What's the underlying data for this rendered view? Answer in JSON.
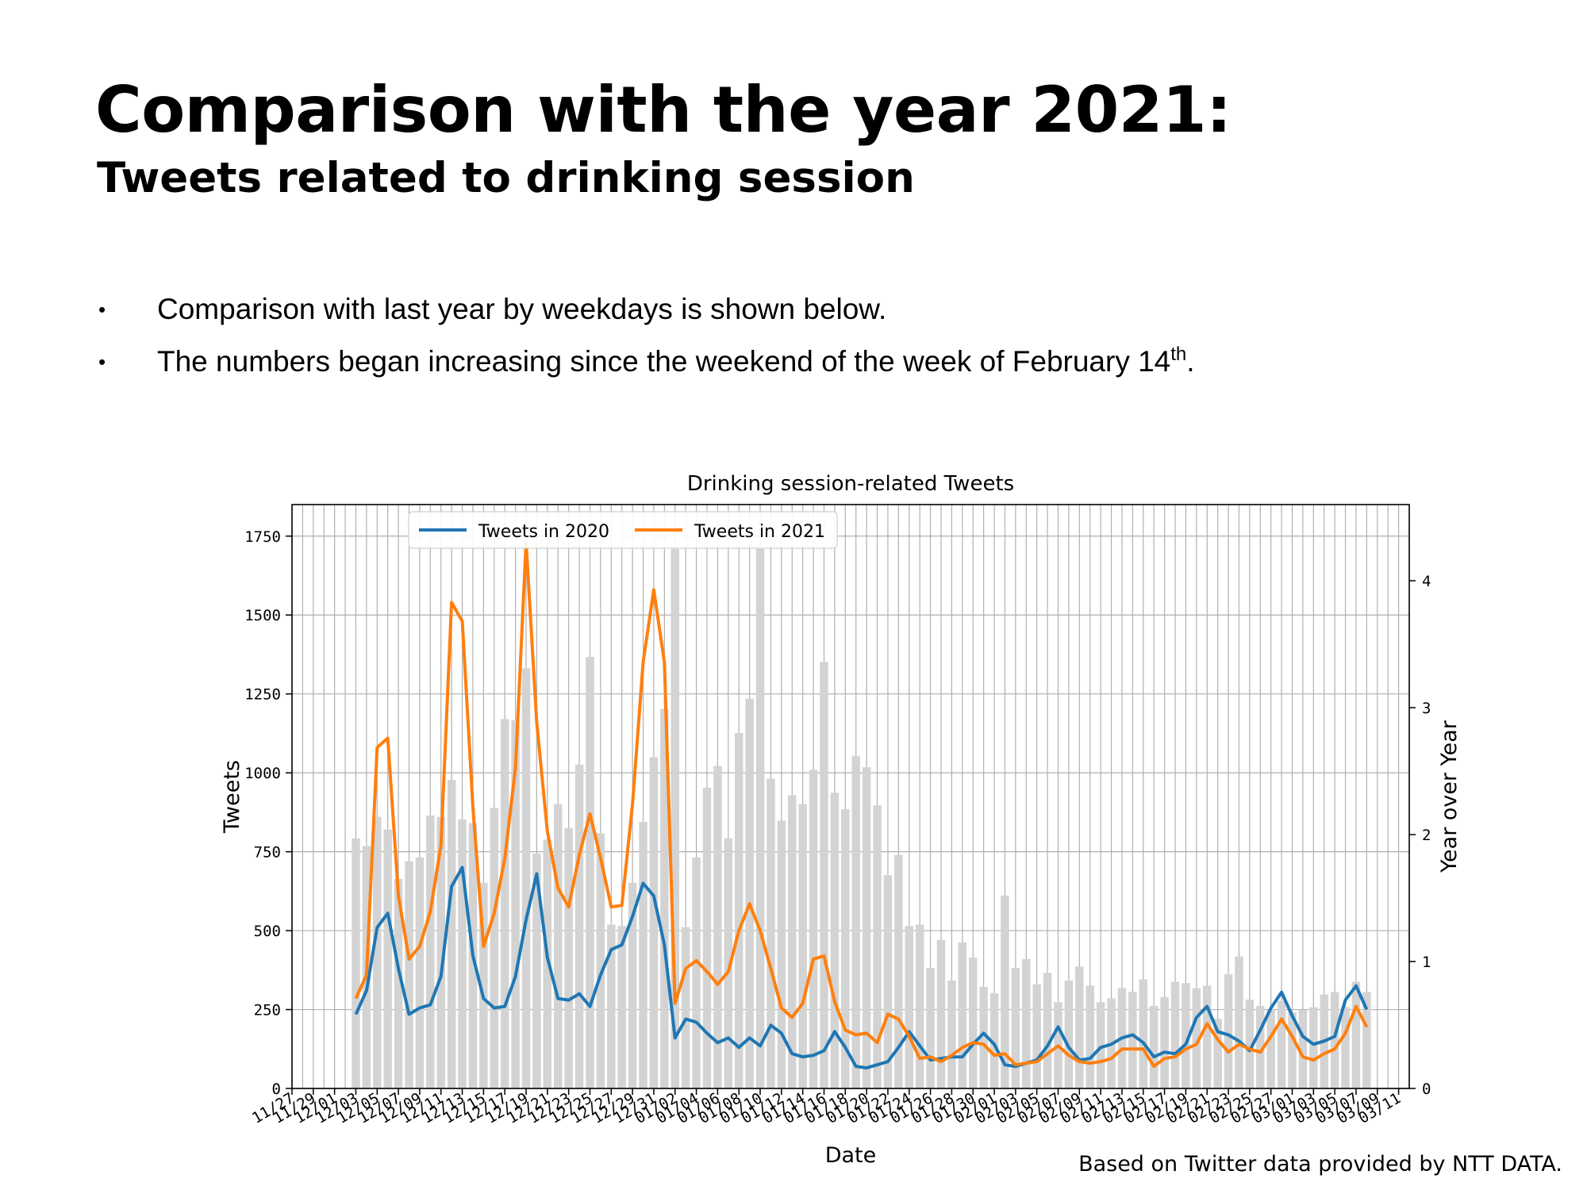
{
  "slide": {
    "title": "Comparison with the year 2021:",
    "subtitle": "Tweets related to drinking session",
    "bullets": [
      {
        "text": "Comparison with last year by weekdays is shown below.",
        "suffix": "",
        "post": ""
      },
      {
        "text": "The numbers began increasing since the weekend of the week of February 14",
        "suffix": "th",
        "post": "."
      }
    ],
    "bullet_glyph": "•",
    "source": "Based on Twitter data provided by NTT DATA."
  },
  "colors": {
    "series_2020": "#1f77b4",
    "series_2021": "#ff7f0e",
    "bars": "#d3d3d3",
    "grid": "#b0b0b0"
  },
  "chart_data": {
    "type": "line",
    "title": "Drinking session-related Tweets",
    "xlabel": "Date",
    "ylabel": "Tweets",
    "y2label": "Year over Year",
    "ylim": [
      0,
      1850
    ],
    "y2lim": [
      0,
      4.6
    ],
    "yticks": [
      0,
      250,
      500,
      750,
      1000,
      1250,
      1500,
      1750
    ],
    "y2ticks": [
      0,
      1,
      2,
      3,
      4
    ],
    "x_start": "2020-11-27",
    "x_end": "2021-03-12",
    "xtick_labels": [
      "11/27",
      "11/29",
      "12/01",
      "12/03",
      "12/05",
      "12/07",
      "12/09",
      "12/11",
      "12/13",
      "12/15",
      "12/17",
      "12/19",
      "12/21",
      "12/23",
      "12/25",
      "12/27",
      "12/29",
      "12/31",
      "01/02",
      "01/04",
      "01/06",
      "01/08",
      "01/10",
      "01/12",
      "01/14",
      "01/16",
      "01/18",
      "01/20",
      "01/22",
      "01/24",
      "01/26",
      "01/28",
      "01/30",
      "02/01",
      "02/03",
      "02/05",
      "02/07",
      "02/09",
      "02/11",
      "02/13",
      "02/15",
      "02/17",
      "02/19",
      "02/21",
      "02/23",
      "02/25",
      "02/27",
      "03/01",
      "03/03",
      "03/05",
      "03/07",
      "03/09",
      "03/11"
    ],
    "grid": true,
    "legend_position": "top-left",
    "dates": [
      "12/03",
      "12/04",
      "12/05",
      "12/06",
      "12/07",
      "12/08",
      "12/09",
      "12/10",
      "12/11",
      "12/12",
      "12/13",
      "12/14",
      "12/15",
      "12/16",
      "12/17",
      "12/18",
      "12/19",
      "12/20",
      "12/21",
      "12/22",
      "12/23",
      "12/24",
      "12/25",
      "12/26",
      "12/27",
      "12/28",
      "12/29",
      "12/30",
      "12/31",
      "01/01",
      "01/02",
      "01/03",
      "01/04",
      "01/05",
      "01/06",
      "01/07",
      "01/08",
      "01/09",
      "01/10",
      "01/11",
      "01/12",
      "01/13",
      "01/14",
      "01/15",
      "01/16",
      "01/17",
      "01/18",
      "01/19",
      "01/20",
      "01/21",
      "01/22",
      "01/23",
      "01/24",
      "01/25",
      "01/26",
      "01/27",
      "01/28",
      "01/29",
      "01/30",
      "01/31",
      "02/01",
      "02/02",
      "02/03",
      "02/04",
      "02/05",
      "02/06",
      "02/07",
      "02/08",
      "02/09",
      "02/10",
      "02/11",
      "02/12",
      "02/13",
      "02/14",
      "02/15",
      "02/16",
      "02/17",
      "02/18",
      "02/19",
      "02/20",
      "02/21",
      "02/22",
      "02/23",
      "02/24",
      "02/25",
      "02/26",
      "02/27",
      "02/28",
      "03/01",
      "03/02",
      "03/03",
      "03/04",
      "03/05",
      "03/06",
      "03/07",
      "03/08"
    ],
    "series": [
      {
        "name": "Tweets in 2020",
        "axis": "left",
        "values": [
          235,
          310,
          510,
          555,
          380,
          235,
          255,
          265,
          355,
          640,
          700,
          420,
          285,
          255,
          260,
          355,
          535,
          680,
          415,
          285,
          280,
          300,
          260,
          360,
          440,
          455,
          545,
          650,
          610,
          455,
          160,
          220,
          210,
          175,
          145,
          160,
          130,
          160,
          135,
          200,
          175,
          110,
          100,
          105,
          120,
          180,
          130,
          70,
          65,
          75,
          85,
          130,
          180,
          135,
          90,
          95,
          100,
          100,
          140,
          175,
          140,
          75,
          70,
          80,
          90,
          135,
          195,
          130,
          90,
          95,
          130,
          140,
          160,
          170,
          145,
          100,
          115,
          110,
          140,
          225,
          260,
          180,
          170,
          150,
          120,
          185,
          255,
          305,
          230,
          165,
          140,
          150,
          165,
          280,
          325,
          250
        ]
      },
      {
        "name": "Tweets in 2021",
        "axis": "left",
        "values": [
          285,
          360,
          1080,
          1110,
          610,
          410,
          450,
          560,
          770,
          1540,
          1480,
          890,
          450,
          555,
          730,
          1015,
          1730,
          1160,
          815,
          635,
          575,
          740,
          870,
          730,
          575,
          580,
          900,
          1350,
          1580,
          1350,
          270,
          380,
          405,
          370,
          330,
          370,
          500,
          585,
          500,
          380,
          255,
          225,
          270,
          410,
          420,
          275,
          185,
          170,
          175,
          145,
          235,
          220,
          165,
          95,
          100,
          85,
          105,
          130,
          145,
          140,
          105,
          110,
          75,
          80,
          85,
          110,
          135,
          105,
          85,
          80,
          85,
          95,
          125,
          125,
          125,
          70,
          95,
          100,
          125,
          140,
          205,
          155,
          115,
          140,
          125,
          115,
          165,
          220,
          165,
          100,
          90,
          110,
          125,
          175,
          260,
          195
        ]
      },
      {
        "name": "",
        "type": "bar",
        "axis": "right",
        "values": [
          1.97,
          1.91,
          2.14,
          2.04,
          1.65,
          1.79,
          1.82,
          2.15,
          2.14,
          2.43,
          2.12,
          2.09,
          1.62,
          2.21,
          2.91,
          2.9,
          3.31,
          1.85,
          1.96,
          2.24,
          2.05,
          2.55,
          3.4,
          2.01,
          1.29,
          1.28,
          1.62,
          2.1,
          2.61,
          2.99,
          4.25,
          1.27,
          1.82,
          2.37,
          2.54,
          1.97,
          2.8,
          3.07,
          4.25,
          2.44,
          2.11,
          2.31,
          2.24,
          2.51,
          3.36,
          2.33,
          2.2,
          2.62,
          2.53,
          2.23,
          1.68,
          1.84,
          1.28,
          1.29,
          0.95,
          1.17,
          0.85,
          1.15,
          1.03,
          0.8,
          0.75,
          1.52,
          0.95,
          1.02,
          0.82,
          0.91,
          0.68,
          0.85,
          0.96,
          0.81,
          0.68,
          0.71,
          0.79,
          0.76,
          0.86,
          0.65,
          0.72,
          0.84,
          0.83,
          0.79,
          0.81,
          0.55,
          0.9,
          1.04,
          0.7,
          0.65,
          0.62,
          0.69,
          0.6,
          0.62,
          0.64,
          0.74,
          0.76,
          0.64,
          0.84,
          0.76
        ]
      }
    ]
  }
}
